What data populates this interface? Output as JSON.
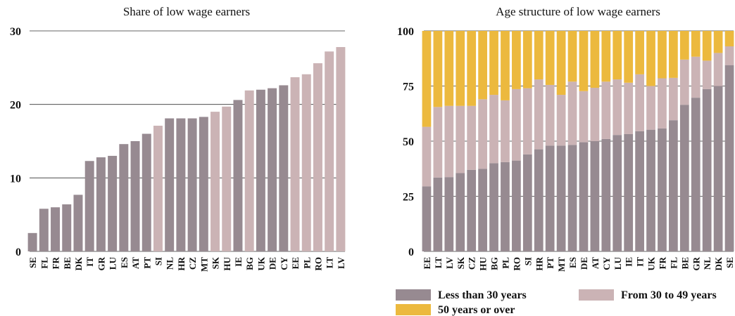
{
  "chart_data": [
    {
      "type": "bar",
      "title": "Share of low wage earners",
      "categories": [
        "SE",
        "FL",
        "FR",
        "BE",
        "DK",
        "IT",
        "GR",
        "LU",
        "ES",
        "AT",
        "PT",
        "SI",
        "NL",
        "HR",
        "CZ",
        "MT",
        "SK",
        "HU",
        "IE",
        "BG",
        "UK",
        "DE",
        "CY",
        "EE",
        "PL",
        "RO",
        "LT",
        "LV"
      ],
      "values": [
        2.5,
        5.8,
        6.0,
        6.4,
        7.7,
        12.3,
        12.8,
        13.0,
        14.6,
        15.0,
        16.0,
        17.1,
        18.1,
        18.1,
        18.1,
        18.3,
        19.0,
        19.7,
        20.6,
        21.9,
        22.0,
        22.2,
        22.6,
        23.7,
        24.1,
        25.6,
        27.2,
        27.8
      ],
      "colors": [
        "#978a91",
        "#978a91",
        "#978a91",
        "#978a91",
        "#978a91",
        "#978a91",
        "#978a91",
        "#978a91",
        "#978a91",
        "#978a91",
        "#978a91",
        "#cbb3b5",
        "#978a91",
        "#978a91",
        "#978a91",
        "#978a91",
        "#cbb3b5",
        "#cbb3b5",
        "#978a91",
        "#cbb3b5",
        "#978a91",
        "#978a91",
        "#978a91",
        "#cbb3b5",
        "#cbb3b5",
        "#cbb3b5",
        "#cbb3b5",
        "#cbb3b5"
      ],
      "ylim": [
        0,
        30
      ],
      "yticks": [
        0,
        10,
        20,
        30
      ],
      "grid": true
    },
    {
      "type": "stacked_bar",
      "title": "Age structure of low wage earners",
      "categories": [
        "EE",
        "LT",
        "LV",
        "SK",
        "CZ",
        "HU",
        "BG",
        "PL",
        "RO",
        "SI",
        "HR",
        "PT",
        "MT",
        "ES",
        "DE",
        "AT",
        "CY",
        "LU",
        "IE",
        "IT",
        "UK",
        "FR",
        "FL",
        "BE",
        "GR",
        "NL",
        "DK",
        "SE"
      ],
      "series": [
        {
          "name": "Less than 30 years",
          "color": "#978a91",
          "values": [
            29.5,
            33.5,
            33.7,
            35.5,
            37,
            37.5,
            40,
            40.5,
            41.2,
            44,
            46.3,
            48,
            48,
            48.3,
            49.5,
            50,
            51,
            52.8,
            53.2,
            54.5,
            55.2,
            55.8,
            59.5,
            66.5,
            69.7,
            73.6,
            75,
            84.5
          ]
        },
        {
          "name": "From 30 to 49 years",
          "color": "#cbb3b5",
          "values": [
            27,
            32,
            32.3,
            30.5,
            29,
            31.5,
            31,
            28,
            32.4,
            30,
            31.7,
            27.5,
            23,
            28.7,
            23.2,
            24.2,
            26,
            25.2,
            23.3,
            25.8,
            19.8,
            22.7,
            19.2,
            20.5,
            18.6,
            12.9,
            15,
            8.5
          ]
        },
        {
          "name": "50 years or over",
          "color": "#ecb93e",
          "values": [
            43.5,
            34.5,
            34,
            34,
            34,
            31,
            29,
            31.5,
            26.4,
            26,
            22,
            24.5,
            29,
            23,
            27.3,
            25.8,
            23,
            22,
            23.5,
            19.7,
            25,
            21.5,
            21.3,
            13,
            11.7,
            13.5,
            10,
            7
          ]
        }
      ],
      "ylim": [
        0,
        100
      ],
      "yticks": [
        0,
        25,
        50,
        75,
        100
      ],
      "grid": true,
      "legend": "bottom"
    }
  ]
}
